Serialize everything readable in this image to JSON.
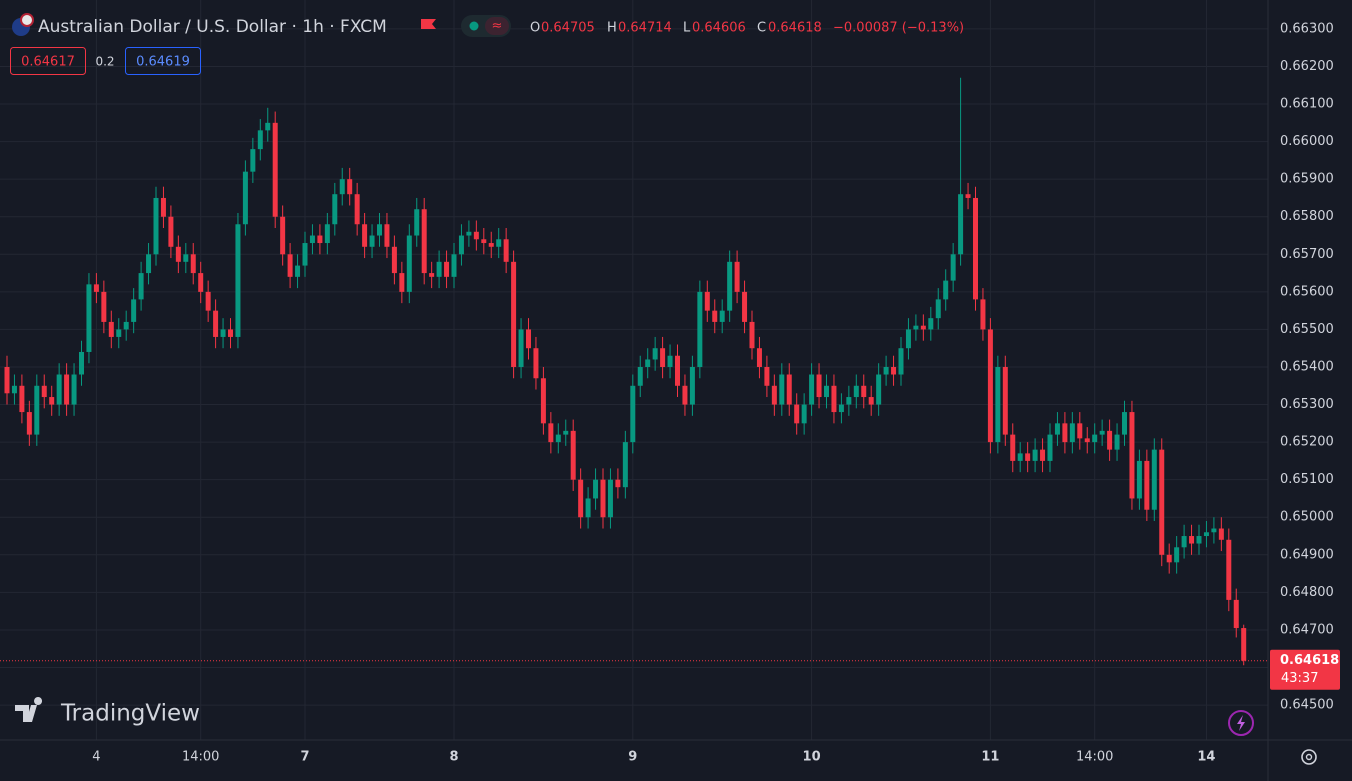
{
  "chart_data": {
    "type": "candlestick",
    "title": "Australian Dollar / U.S. Dollar · 1h · FXCM",
    "ohlc_labels": [
      "O",
      "H",
      "L",
      "C"
    ],
    "change": "−0.00087 (−0.13%)",
    "bid": "0.64617",
    "spread": "0.2",
    "ask": "0.64619",
    "countdown": "43:37",
    "watermark": "TradingView",
    "up_color": "#089981",
    "down_color": "#f23645",
    "grid": true,
    "categories": [
      null,
      null,
      null,
      null,
      null,
      null,
      null,
      null,
      null,
      null,
      null,
      null,
      "4",
      null,
      null,
      null,
      null,
      null,
      null,
      null,
      null,
      null,
      null,
      null,
      null,
      null,
      "14:00",
      null,
      null,
      null,
      null,
      null,
      null,
      null,
      null,
      null,
      null,
      null,
      null,
      null,
      "7",
      null,
      null,
      null,
      null,
      null,
      null,
      null,
      null,
      null,
      null,
      null,
      null,
      null,
      null,
      null,
      null,
      null,
      null,
      null,
      "8",
      null,
      null,
      null,
      null,
      null,
      null,
      null,
      null,
      null,
      null,
      null,
      null,
      null,
      null,
      null,
      null,
      null,
      null,
      null,
      null,
      null,
      null,
      null,
      "9",
      null,
      null,
      null,
      null,
      null,
      null,
      null,
      null,
      null,
      null,
      null,
      null,
      null,
      null,
      null,
      null,
      null,
      null,
      null,
      null,
      null,
      null,
      null,
      "10",
      null,
      null,
      null,
      null,
      null,
      null,
      null,
      null,
      null,
      null,
      null,
      null,
      null,
      null,
      null,
      null,
      null,
      null,
      null,
      null,
      null,
      null,
      null,
      "11",
      null,
      null,
      null,
      null,
      null,
      null,
      null,
      null,
      null,
      null,
      null,
      null,
      null,
      "14:00",
      null,
      null,
      null,
      null,
      null,
      null,
      null,
      null,
      null,
      null,
      null,
      null,
      null,
      null,
      "14",
      null,
      null,
      null,
      null,
      null
    ],
    "open": [
      0.654,
      0.6533,
      0.6535,
      0.6528,
      0.6522,
      0.6535,
      0.6532,
      0.653,
      0.6538,
      0.653,
      0.6538,
      0.6544,
      0.6562,
      0.656,
      0.6552,
      0.6548,
      0.655,
      0.6552,
      0.6558,
      0.6565,
      0.657,
      0.6585,
      0.658,
      0.6572,
      0.6568,
      0.657,
      0.6565,
      0.656,
      0.6555,
      0.6548,
      0.655,
      0.6548,
      0.6578,
      0.6592,
      0.6598,
      0.6603,
      0.6605,
      0.658,
      0.657,
      0.6564,
      0.6567,
      0.6573,
      0.6575,
      0.6573,
      0.6578,
      0.6586,
      0.659,
      0.6586,
      0.6578,
      0.6572,
      0.6575,
      0.6578,
      0.6572,
      0.6565,
      0.656,
      0.6575,
      0.6582,
      0.6565,
      0.6564,
      0.6568,
      0.6564,
      0.657,
      0.6575,
      0.6576,
      0.6574,
      0.6573,
      0.6572,
      0.6574,
      0.6568,
      0.654,
      0.655,
      0.6545,
      0.6537,
      0.6525,
      0.652,
      0.6522,
      0.6523,
      0.651,
      0.65,
      0.6505,
      0.651,
      0.65,
      0.651,
      0.6508,
      0.652,
      0.6535,
      0.654,
      0.6542,
      0.6545,
      0.654,
      0.6543,
      0.6535,
      0.653,
      0.654,
      0.656,
      0.6555,
      0.6552,
      0.6555,
      0.6568,
      0.656,
      0.6552,
      0.6545,
      0.654,
      0.6535,
      0.653,
      0.6538,
      0.653,
      0.6525,
      0.653,
      0.6538,
      0.6532,
      0.6535,
      0.6528,
      0.653,
      0.6532,
      0.6535,
      0.6532,
      0.653,
      0.6538,
      0.654,
      0.6538,
      0.6545,
      0.655,
      0.6551,
      0.655,
      0.6553,
      0.6558,
      0.6563,
      0.657,
      0.6586,
      0.6585,
      0.6558,
      0.655,
      0.652,
      0.654,
      0.6522,
      0.6515,
      0.6517,
      0.6515,
      0.6518,
      0.6515,
      0.6522,
      0.6525,
      0.652,
      0.6525,
      0.6521,
      0.652,
      0.6522,
      0.6523,
      0.6518,
      0.6522,
      0.6528,
      0.6505,
      0.6515,
      0.6502,
      0.6518,
      0.649,
      0.6488,
      0.6492,
      0.6495,
      0.6493,
      0.6495,
      0.6496,
      0.6497,
      0.6494,
      0.6478,
      0.64705
    ],
    "high": [
      0.6543,
      0.6538,
      0.6538,
      0.6531,
      0.6538,
      0.6538,
      0.6535,
      0.6541,
      0.6541,
      0.6541,
      0.6547,
      0.6565,
      0.6565,
      0.6563,
      0.6555,
      0.6553,
      0.6555,
      0.6561,
      0.6568,
      0.6573,
      0.6588,
      0.6588,
      0.6583,
      0.6575,
      0.6573,
      0.6573,
      0.6568,
      0.6563,
      0.6558,
      0.6553,
      0.6553,
      0.6581,
      0.6595,
      0.6601,
      0.6606,
      0.6609,
      0.6608,
      0.6583,
      0.6573,
      0.657,
      0.6576,
      0.6578,
      0.6578,
      0.6581,
      0.6589,
      0.6593,
      0.6593,
      0.6589,
      0.6581,
      0.6578,
      0.6581,
      0.6581,
      0.6575,
      0.6568,
      0.6578,
      0.6585,
      0.6585,
      0.6568,
      0.6571,
      0.6571,
      0.6573,
      0.6578,
      0.6579,
      0.6579,
      0.6577,
      0.6576,
      0.6577,
      0.6577,
      0.6571,
      0.6553,
      0.6553,
      0.6548,
      0.654,
      0.6528,
      0.6525,
      0.6526,
      0.6526,
      0.6513,
      0.6508,
      0.6513,
      0.6513,
      0.6513,
      0.6513,
      0.6523,
      0.6538,
      0.6543,
      0.6545,
      0.6548,
      0.6548,
      0.6546,
      0.6546,
      0.6538,
      0.6543,
      0.6563,
      0.6563,
      0.6558,
      0.6558,
      0.6571,
      0.6571,
      0.6563,
      0.6555,
      0.6548,
      0.6543,
      0.6538,
      0.6541,
      0.6541,
      0.6533,
      0.6533,
      0.6541,
      0.6541,
      0.6538,
      0.6538,
      0.6533,
      0.6535,
      0.6538,
      0.6538,
      0.6535,
      0.6541,
      0.6543,
      0.6543,
      0.6548,
      0.6553,
      0.6554,
      0.6554,
      0.6556,
      0.6561,
      0.6566,
      0.6573,
      0.6617,
      0.6589,
      0.6588,
      0.6561,
      0.6553,
      0.6543,
      0.6543,
      0.6525,
      0.652,
      0.652,
      0.6521,
      0.6521,
      0.6525,
      0.6528,
      0.6528,
      0.6528,
      0.6528,
      0.6524,
      0.6525,
      0.6526,
      0.6526,
      0.6525,
      0.6531,
      0.6531,
      0.6518,
      0.6518,
      0.6521,
      0.6521,
      0.6493,
      0.6495,
      0.6498,
      0.6498,
      0.6498,
      0.6499,
      0.65,
      0.65,
      0.6497,
      0.6481,
      0.64714
    ],
    "low": [
      0.653,
      0.653,
      0.6525,
      0.6519,
      0.6519,
      0.6529,
      0.6527,
      0.6527,
      0.6527,
      0.6527,
      0.6535,
      0.6541,
      0.6557,
      0.6549,
      0.6545,
      0.6545,
      0.6547,
      0.6549,
      0.6555,
      0.6562,
      0.6567,
      0.6577,
      0.6569,
      0.6565,
      0.6565,
      0.6562,
      0.6557,
      0.6552,
      0.6545,
      0.6545,
      0.6545,
      0.6545,
      0.6575,
      0.6589,
      0.6595,
      0.66,
      0.6577,
      0.6567,
      0.6561,
      0.6561,
      0.6564,
      0.657,
      0.657,
      0.657,
      0.6575,
      0.6583,
      0.6583,
      0.6575,
      0.6569,
      0.6569,
      0.6572,
      0.6569,
      0.6562,
      0.6557,
      0.6557,
      0.6572,
      0.6562,
      0.6561,
      0.6561,
      0.6561,
      0.6561,
      0.6567,
      0.6572,
      0.6571,
      0.657,
      0.6569,
      0.6569,
      0.6565,
      0.6537,
      0.6537,
      0.6542,
      0.6534,
      0.6522,
      0.6517,
      0.6517,
      0.6519,
      0.6507,
      0.6497,
      0.6497,
      0.6502,
      0.6497,
      0.6497,
      0.6505,
      0.6505,
      0.6517,
      0.6532,
      0.6537,
      0.6539,
      0.6537,
      0.6537,
      0.6532,
      0.6527,
      0.6527,
      0.6537,
      0.6552,
      0.6549,
      0.6549,
      0.6552,
      0.6557,
      0.6549,
      0.6542,
      0.6537,
      0.6532,
      0.6527,
      0.6527,
      0.6527,
      0.6522,
      0.6522,
      0.6527,
      0.6529,
      0.6529,
      0.6525,
      0.6525,
      0.6527,
      0.6529,
      0.6529,
      0.6527,
      0.6527,
      0.6535,
      0.6535,
      0.6535,
      0.6542,
      0.6547,
      0.6547,
      0.6547,
      0.655,
      0.6555,
      0.656,
      0.6567,
      0.6582,
      0.6555,
      0.6547,
      0.6517,
      0.6517,
      0.6519,
      0.6512,
      0.6512,
      0.6512,
      0.6512,
      0.6512,
      0.6512,
      0.6519,
      0.6517,
      0.6517,
      0.6518,
      0.6517,
      0.6517,
      0.6519,
      0.6515,
      0.6515,
      0.6519,
      0.6502,
      0.6502,
      0.6499,
      0.6499,
      0.6487,
      0.6485,
      0.6485,
      0.6489,
      0.649,
      0.649,
      0.6492,
      0.6493,
      0.6491,
      0.6475,
      0.6468,
      0.64606
    ],
    "close": [
      0.6533,
      0.6535,
      0.6528,
      0.6522,
      0.6535,
      0.6532,
      0.653,
      0.6538,
      0.653,
      0.6538,
      0.6544,
      0.6562,
      0.656,
      0.6552,
      0.6548,
      0.655,
      0.6552,
      0.6558,
      0.6565,
      0.657,
      0.6585,
      0.658,
      0.6572,
      0.6568,
      0.657,
      0.6565,
      0.656,
      0.6555,
      0.6548,
      0.655,
      0.6548,
      0.6578,
      0.6592,
      0.6598,
      0.6603,
      0.6605,
      0.658,
      0.657,
      0.6564,
      0.6567,
      0.6573,
      0.6575,
      0.6573,
      0.6578,
      0.6586,
      0.659,
      0.6586,
      0.6578,
      0.6572,
      0.6575,
      0.6578,
      0.6572,
      0.6565,
      0.656,
      0.6575,
      0.6582,
      0.6565,
      0.6564,
      0.6568,
      0.6564,
      0.657,
      0.6575,
      0.6576,
      0.6574,
      0.6573,
      0.6572,
      0.6574,
      0.6568,
      0.654,
      0.655,
      0.6545,
      0.6537,
      0.6525,
      0.652,
      0.6522,
      0.6523,
      0.651,
      0.65,
      0.6505,
      0.651,
      0.65,
      0.651,
      0.6508,
      0.652,
      0.6535,
      0.654,
      0.6542,
      0.6545,
      0.654,
      0.6543,
      0.6535,
      0.653,
      0.654,
      0.656,
      0.6555,
      0.6552,
      0.6555,
      0.6568,
      0.656,
      0.6552,
      0.6545,
      0.654,
      0.6535,
      0.653,
      0.6538,
      0.653,
      0.6525,
      0.653,
      0.6538,
      0.6532,
      0.6535,
      0.6528,
      0.653,
      0.6532,
      0.6535,
      0.6532,
      0.653,
      0.6538,
      0.654,
      0.6538,
      0.6545,
      0.655,
      0.6551,
      0.655,
      0.6553,
      0.6558,
      0.6563,
      0.657,
      0.6586,
      0.6585,
      0.6558,
      0.655,
      0.652,
      0.654,
      0.6522,
      0.6515,
      0.6517,
      0.6515,
      0.6518,
      0.6515,
      0.6522,
      0.6525,
      0.652,
      0.6525,
      0.6521,
      0.652,
      0.6522,
      0.6523,
      0.6518,
      0.6522,
      0.6528,
      0.6505,
      0.6515,
      0.6502,
      0.6518,
      0.649,
      0.6488,
      0.6492,
      0.6495,
      0.6493,
      0.6495,
      0.6496,
      0.6497,
      0.6494,
      0.6478,
      0.64705,
      0.64618
    ],
    "ylim": [
      0.64407,
      0.66377
    ],
    "yticks": [
      {
        "value": 0.645,
        "label": "0.64500"
      },
      {
        "value": 0.646,
        "label": "0.64600"
      },
      {
        "value": 0.647,
        "label": "0.64700"
      },
      {
        "value": 0.648,
        "label": "0.64800"
      },
      {
        "value": 0.649,
        "label": "0.64900"
      },
      {
        "value": 0.65,
        "label": "0.65000"
      },
      {
        "value": 0.651,
        "label": "0.65100"
      },
      {
        "value": 0.652,
        "label": "0.65200"
      },
      {
        "value": 0.653,
        "label": "0.65300"
      },
      {
        "value": 0.654,
        "label": "0.65400"
      },
      {
        "value": 0.655,
        "label": "0.65500"
      },
      {
        "value": 0.656,
        "label": "0.65600"
      },
      {
        "value": 0.657,
        "label": "0.65700"
      },
      {
        "value": 0.658,
        "label": "0.65800"
      },
      {
        "value": 0.659,
        "label": "0.65900"
      },
      {
        "value": 0.66,
        "label": "0.66000"
      },
      {
        "value": 0.661,
        "label": "0.66100"
      },
      {
        "value": 0.662,
        "label": "0.66200"
      },
      {
        "value": 0.663,
        "label": "0.66300"
      }
    ]
  }
}
